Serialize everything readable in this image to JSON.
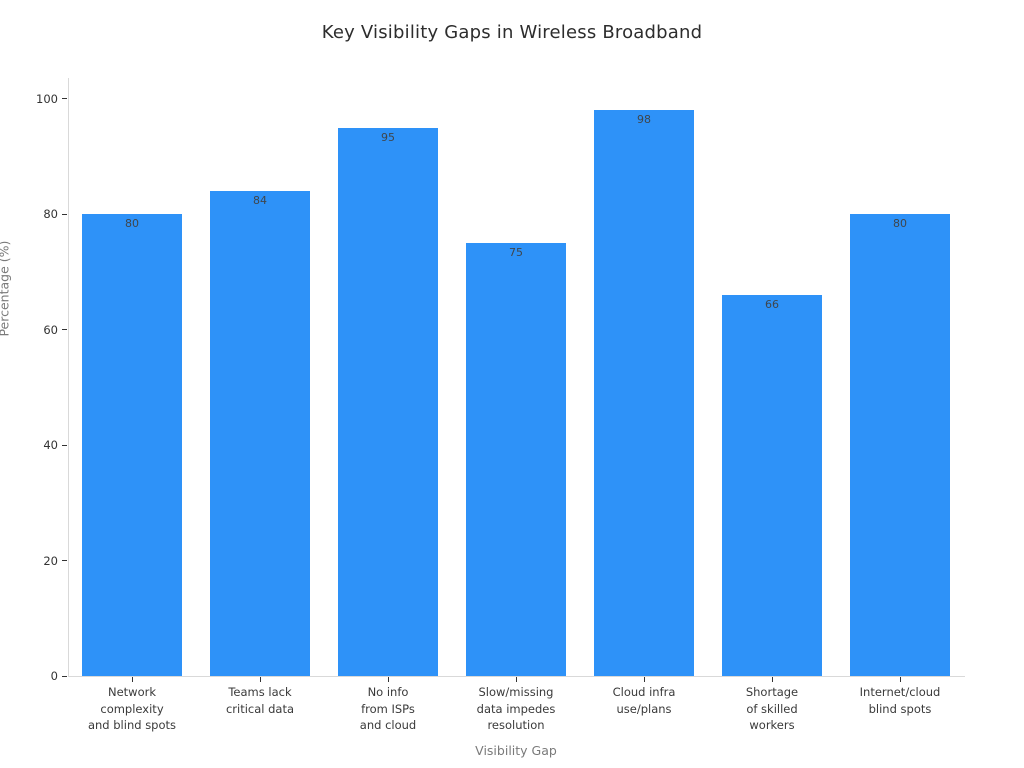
{
  "chart_data": {
    "type": "bar",
    "title": "Key Visibility Gaps in Wireless Broadband",
    "categories": [
      "Network\ncomplexity\nand blind spots",
      "Teams lack\ncritical data",
      "No info\nfrom ISPs\nand cloud",
      "Slow/missing\ndata impedes\nresolution",
      "Cloud infra\nuse/plans",
      "Shortage\nof skilled\nworkers",
      "Internet/cloud\nblind spots"
    ],
    "values": [
      80,
      84,
      95,
      75,
      98,
      66,
      80
    ],
    "bar_value_labels": [
      "80",
      "84",
      "95",
      "75",
      "98",
      "66",
      "80"
    ],
    "xlabel": "Visibility Gap",
    "ylabel": "Percentage (%)",
    "ylim": [
      0,
      103.6
    ],
    "yticks": [
      0,
      20,
      40,
      60,
      80,
      100
    ],
    "grid": false,
    "legend": false,
    "bar_color": "#2e92f8",
    "value_label_color": "#3f464d",
    "axis_line_color": "#d9d9d9",
    "tick_color": "#333333",
    "title_color": "#2d2d2d",
    "axis_title_color": "#7a7a7a"
  }
}
